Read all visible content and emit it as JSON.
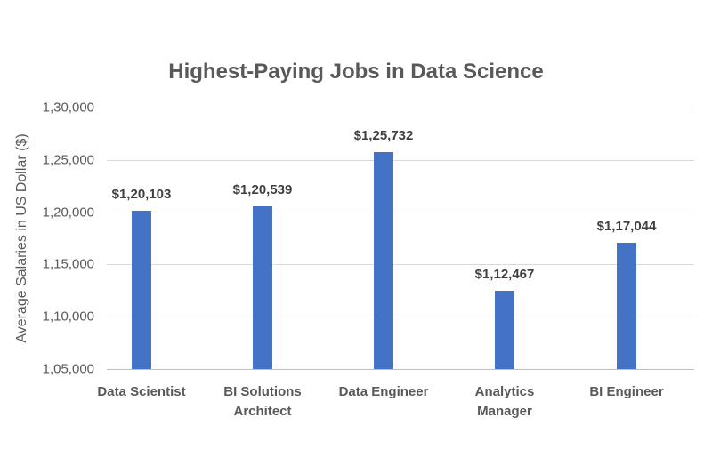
{
  "chart_data": {
    "type": "bar",
    "title": "Highest-Paying Jobs in Data Science",
    "xlabel": "",
    "ylabel": "Average Salaries in US Dollar ($)",
    "categories": [
      "Data Scientist",
      "BI Solutions Architect",
      "Data Engineer",
      "Analytics Manager",
      "BI Engineer"
    ],
    "category_lines": [
      [
        "Data Scientist"
      ],
      [
        "BI Solutions",
        "Architect"
      ],
      [
        "Data Engineer"
      ],
      [
        "Analytics",
        "Manager"
      ],
      [
        "BI Engineer"
      ]
    ],
    "values": [
      120103,
      120539,
      125732,
      112467,
      117044
    ],
    "data_labels": [
      "$1,20,103",
      "$1,20,539",
      "$1,25,732",
      "$1,12,467",
      "$1,17,044"
    ],
    "ylim": [
      105000,
      130000
    ],
    "yticks": [
      130000,
      125000,
      120000,
      115000,
      110000,
      105000
    ],
    "ytick_labels": [
      "1,30,000",
      "1,25,000",
      "1,20,000",
      "1,15,000",
      "1,10,000",
      "1,05,000"
    ],
    "grid": true,
    "legend": null,
    "bar_color": "#4472c4"
  }
}
